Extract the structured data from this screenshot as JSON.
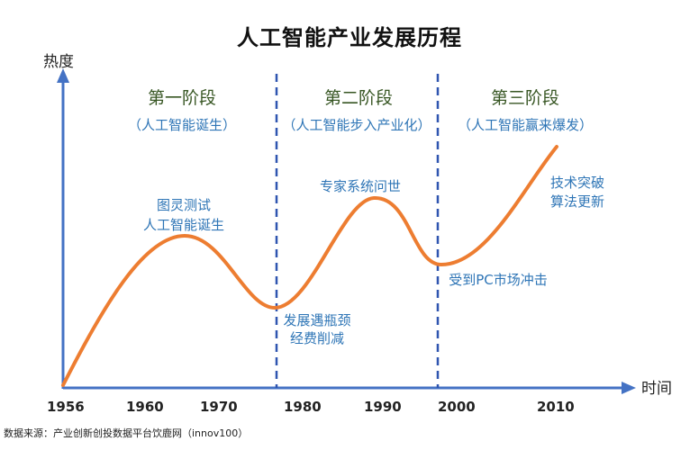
{
  "title": "人工智能产业发展历程",
  "source": "数据来源：产业创新创投数据平台饮鹿网（innov100）",
  "axes": {
    "y_label": "热度",
    "x_label": "时间",
    "x_ticks": [
      "1956",
      "1960",
      "1970",
      "1980",
      "1990",
      "2000",
      "2010"
    ]
  },
  "stages": [
    {
      "name": "第一阶段",
      "sub": "（人工智能诞生）"
    },
    {
      "name": "第二阶段",
      "sub": "（人工智能步入产业化）"
    },
    {
      "name": "第三阶段",
      "sub": "（人工智能赢来爆发）"
    }
  ],
  "events": [
    {
      "lines": [
        "图灵测试",
        "人工智能诞生"
      ]
    },
    {
      "lines": [
        "发展遇瓶颈",
        "经费削减"
      ]
    },
    {
      "lines": [
        "专家系统问世"
      ]
    },
    {
      "lines": [
        "受到PC市场冲击"
      ]
    },
    {
      "lines": [
        "技术突破",
        "算法更新"
      ]
    }
  ],
  "colors": {
    "axis": "#4472c4",
    "curve": "#ed7d31",
    "stage_title": "#375623",
    "stage_sub": "#2e75b6",
    "event": "#2e75b6",
    "divider": "#2f55b0"
  }
}
